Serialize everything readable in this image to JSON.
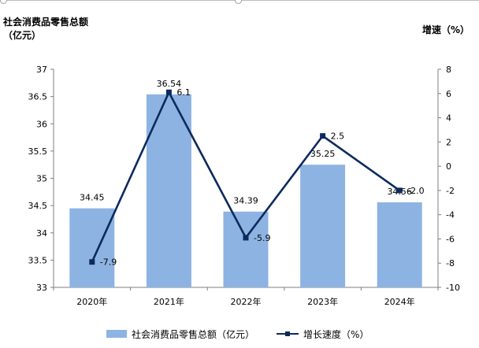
{
  "chart_data": {
    "type": "bar",
    "categories": [
      "2020年",
      "2021年",
      "2022年",
      "2023年",
      "2024年"
    ],
    "left_axis_title": "社会消费品零售总额（亿元）",
    "right_axis_title": "增速（%）",
    "y_left": {
      "min": 33,
      "max": 37,
      "step": 0.5,
      "ticks": [
        "33",
        "33.5",
        "34",
        "34.5",
        "35",
        "35.5",
        "36",
        "36.5",
        "37"
      ]
    },
    "y_right": {
      "min": -10,
      "max": 8,
      "step": 2,
      "ticks": [
        "-10",
        "-8",
        "-6",
        "-4",
        "-2",
        "0",
        "2",
        "4",
        "6",
        "8"
      ]
    },
    "series": [
      {
        "name": "社会消费品零售总额（亿元）",
        "type": "bar",
        "axis": "left",
        "color": "#8db3e2",
        "values": [
          34.45,
          36.54,
          34.39,
          35.25,
          34.56
        ],
        "labels": [
          "34.45",
          "36.54",
          "34.39",
          "35.25",
          "34.56"
        ]
      },
      {
        "name": "增长速度（%）",
        "type": "line",
        "axis": "right",
        "color": "#0d2a5e",
        "values": [
          -7.9,
          6.1,
          -5.9,
          2.5,
          -2.0
        ],
        "labels": [
          "-7.9",
          "6.1",
          "-5.9",
          "2.5",
          "-2.0"
        ]
      }
    ],
    "grid": false,
    "legend": "bottom"
  }
}
